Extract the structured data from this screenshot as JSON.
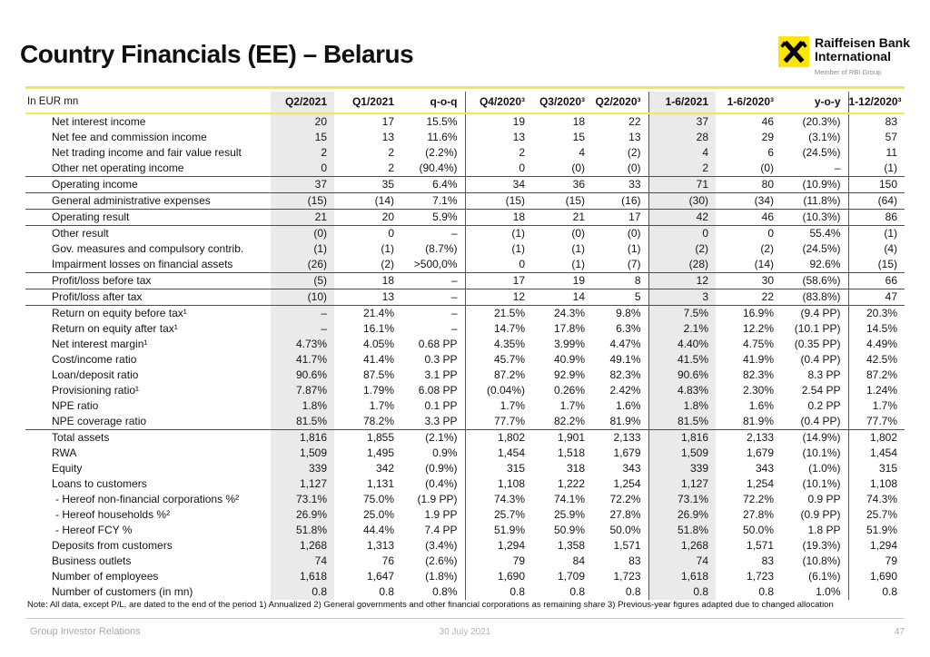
{
  "slide": {
    "title": "Country Financials (EE) – Belarus",
    "note": "Note: All data, except P/L, are dated to the end of the period 1) Annualized  2) General governments and other financial corporations as remaining share  3) Previous-year figures adapted due to changed allocation",
    "footer": {
      "left": "Group Investor Relations",
      "date": "30 July 2021",
      "page": "47"
    }
  },
  "logo": {
    "line1": "Raiffeisen Bank",
    "line2": "International",
    "subline": "Member of RBI Group",
    "brand_yellow": "#FFE600"
  },
  "colors": {
    "accent_yellow": "#F3E74E",
    "column_shade": "#EAEAEA",
    "divider": "#555555"
  },
  "table": {
    "unit_label": "In EUR mn",
    "columns": [
      "Q2/2021",
      "Q1/2021",
      "q-o-q",
      "Q4/2020³",
      "Q3/2020³",
      "Q2/2020³",
      "1-6/2021",
      "1-6/2020³",
      "y-o-y",
      "1-12/2020³"
    ],
    "rows": [
      {
        "label": "Net interest income",
        "values": [
          "20",
          "17",
          "15.5%",
          "19",
          "18",
          "22",
          "37",
          "46",
          "(20.3%)",
          "83"
        ]
      },
      {
        "label": "Net fee and commission income",
        "values": [
          "15",
          "13",
          "11.6%",
          "13",
          "15",
          "13",
          "28",
          "29",
          "(3.1%)",
          "57"
        ]
      },
      {
        "label": "Net trading income and fair value result",
        "values": [
          "2",
          "2",
          "(2.2%)",
          "2",
          "4",
          "(2)",
          "4",
          "6",
          "(24.5%)",
          "11"
        ]
      },
      {
        "label": "Other net operating income",
        "values": [
          "0",
          "2",
          "(90.4%)",
          "0",
          "(0)",
          "(0)",
          "2",
          "(0)",
          "–",
          "(1)"
        ]
      },
      {
        "label": "Operating income",
        "rule_top": true,
        "values": [
          "37",
          "35",
          "6.4%",
          "34",
          "36",
          "33",
          "71",
          "80",
          "(10.9%)",
          "150"
        ]
      },
      {
        "label": "General administrative expenses",
        "rule_top": true,
        "values": [
          "(15)",
          "(14)",
          "7.1%",
          "(15)",
          "(15)",
          "(16)",
          "(30)",
          "(34)",
          "(11.8%)",
          "(64)"
        ]
      },
      {
        "label": "Operating result",
        "rule_top": true,
        "values": [
          "21",
          "20",
          "5.9%",
          "18",
          "21",
          "17",
          "42",
          "46",
          "(10.3%)",
          "86"
        ]
      },
      {
        "label": "Other result",
        "rule_top": true,
        "values": [
          "(0)",
          "0",
          "–",
          "(1)",
          "(0)",
          "(0)",
          "0",
          "0",
          "55.4%",
          "(1)"
        ]
      },
      {
        "label": "Gov. measures and compulsory contrib.",
        "values": [
          "(1)",
          "(1)",
          "(8.7%)",
          "(1)",
          "(1)",
          "(1)",
          "(2)",
          "(2)",
          "(24.5%)",
          "(4)"
        ]
      },
      {
        "label": "Impairment losses on financial assets",
        "values": [
          "(26)",
          "(2)",
          ">500,0%",
          "0",
          "(1)",
          "(7)",
          "(28)",
          "(14)",
          "92.6%",
          "(15)"
        ]
      },
      {
        "label": "Profit/loss before tax",
        "rule_top": true,
        "values": [
          "(5)",
          "18",
          "–",
          "17",
          "19",
          "8",
          "12",
          "30",
          "(58.6%)",
          "66"
        ]
      },
      {
        "label": "Profit/loss after tax",
        "rule_top": true,
        "values": [
          "(10)",
          "13",
          "–",
          "12",
          "14",
          "5",
          "3",
          "22",
          "(83.8%)",
          "47"
        ]
      },
      {
        "label": "Return on equity before tax¹",
        "rule_top": true,
        "values": [
          "–",
          "21.4%",
          "–",
          "21.5%",
          "24.3%",
          "9.8%",
          "7.5%",
          "16.9%",
          "(9.4 PP)",
          "20.3%"
        ]
      },
      {
        "label": "Return on equity after tax¹",
        "values": [
          "–",
          "16.1%",
          "–",
          "14.7%",
          "17.8%",
          "6.3%",
          "2.1%",
          "12.2%",
          "(10.1 PP)",
          "14.5%"
        ]
      },
      {
        "label": "Net interest margin¹",
        "values": [
          "4.73%",
          "4.05%",
          "0.68 PP",
          "4.35%",
          "3.99%",
          "4.47%",
          "4.40%",
          "4.75%",
          "(0.35 PP)",
          "4.49%"
        ]
      },
      {
        "label": "Cost/income ratio",
        "values": [
          "41.7%",
          "41.4%",
          "0.3 PP",
          "45.7%",
          "40.9%",
          "49.1%",
          "41.5%",
          "41.9%",
          "(0.4 PP)",
          "42.5%"
        ]
      },
      {
        "label": "Loan/deposit ratio",
        "values": [
          "90.6%",
          "87.5%",
          "3.1 PP",
          "87.2%",
          "92.9%",
          "82.3%",
          "90.6%",
          "82.3%",
          "8.3 PP",
          "87.2%"
        ]
      },
      {
        "label": "Provisioning ratio¹",
        "values": [
          "7.87%",
          "1.79%",
          "6.08 PP",
          "(0.04%)",
          "0.26%",
          "2.42%",
          "4.83%",
          "2.30%",
          "2.54 PP",
          "1.24%"
        ]
      },
      {
        "label": "NPE ratio",
        "values": [
          "1.8%",
          "1.7%",
          "0.1 PP",
          "1.7%",
          "1.7%",
          "1.6%",
          "1.8%",
          "1.6%",
          "0.2 PP",
          "1.7%"
        ]
      },
      {
        "label": "NPE coverage ratio",
        "values": [
          "81.5%",
          "78.2%",
          "3.3 PP",
          "77.7%",
          "82.2%",
          "81.9%",
          "81.5%",
          "81.9%",
          "(0.4 PP)",
          "77.7%"
        ]
      },
      {
        "label": "Total assets",
        "rule_top": true,
        "values": [
          "1,816",
          "1,855",
          "(2.1%)",
          "1,802",
          "1,901",
          "2,133",
          "1,816",
          "2,133",
          "(14.9%)",
          "1,802"
        ]
      },
      {
        "label": "RWA",
        "values": [
          "1,509",
          "1,495",
          "0.9%",
          "1,454",
          "1,518",
          "1,679",
          "1,509",
          "1,679",
          "(10.1%)",
          "1,454"
        ]
      },
      {
        "label": "Equity",
        "values": [
          "339",
          "342",
          "(0.9%)",
          "315",
          "318",
          "343",
          "339",
          "343",
          "(1.0%)",
          "315"
        ]
      },
      {
        "label": "Loans to customers",
        "values": [
          "1,127",
          "1,131",
          "(0.4%)",
          "1,108",
          "1,222",
          "1,254",
          "1,127",
          "1,254",
          "(10.1%)",
          "1,108"
        ]
      },
      {
        "label": "- Hereof non-financial corporations %²",
        "indent": true,
        "values": [
          "73.1%",
          "75.0%",
          "(1.9 PP)",
          "74.3%",
          "74.1%",
          "72.2%",
          "73.1%",
          "72.2%",
          "0.9 PP",
          "74.3%"
        ]
      },
      {
        "label": "- Hereof households %²",
        "indent": true,
        "values": [
          "26.9%",
          "25.0%",
          "1.9 PP",
          "25.7%",
          "25.9%",
          "27.8%",
          "26.9%",
          "27.8%",
          "(0.9 PP)",
          "25.7%"
        ]
      },
      {
        "label": "- Hereof FCY %",
        "indent": true,
        "values": [
          "51.8%",
          "44.4%",
          "7.4 PP",
          "51.9%",
          "50.9%",
          "50.0%",
          "51.8%",
          "50.0%",
          "1.8 PP",
          "51.9%"
        ]
      },
      {
        "label": "Deposits from customers",
        "values": [
          "1,268",
          "1,313",
          "(3.4%)",
          "1,294",
          "1,358",
          "1,571",
          "1,268",
          "1,571",
          "(19.3%)",
          "1,294"
        ]
      },
      {
        "label": "Business outlets",
        "values": [
          "74",
          "76",
          "(2.6%)",
          "79",
          "84",
          "83",
          "74",
          "83",
          "(10.8%)",
          "79"
        ]
      },
      {
        "label": "Number of employees",
        "values": [
          "1,618",
          "1,647",
          "(1.8%)",
          "1,690",
          "1,709",
          "1,723",
          "1,618",
          "1,723",
          "(6.1%)",
          "1,690"
        ]
      },
      {
        "label": "Number of customers (in mn)",
        "values": [
          "0.8",
          "0.8",
          "0.8%",
          "0.8",
          "0.8",
          "0.8",
          "0.8",
          "0.8",
          "1.0%",
          "0.8"
        ]
      }
    ]
  }
}
